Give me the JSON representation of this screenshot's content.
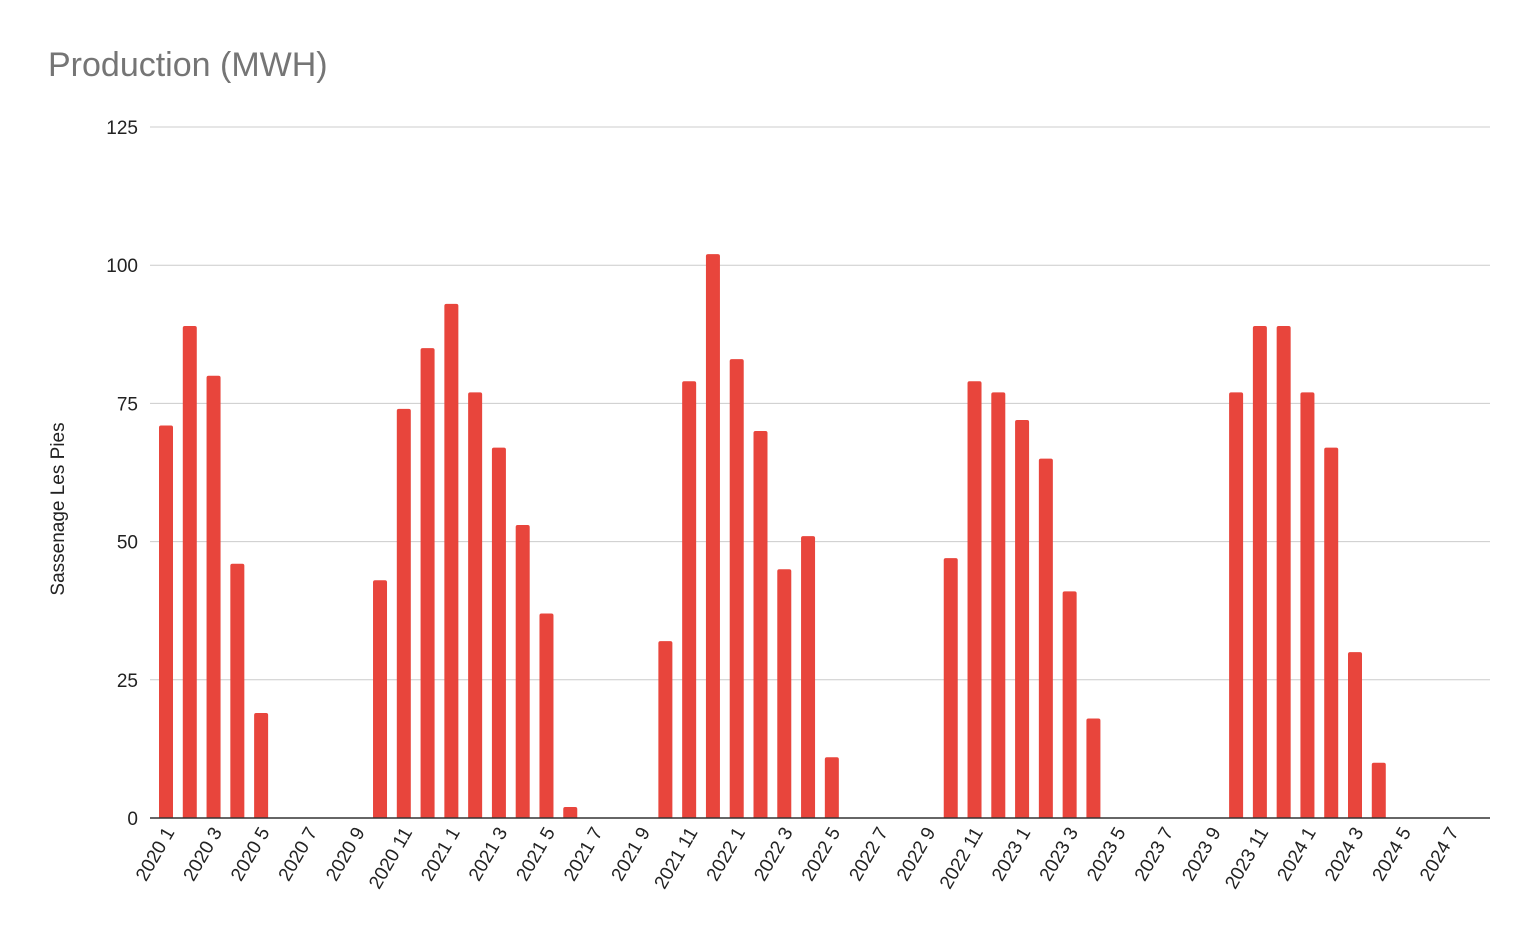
{
  "chart_data": {
    "type": "bar",
    "title": "Production (MWH)",
    "ylabel": "Sassenage Les Pies",
    "xlabel": "",
    "ylim": [
      0,
      125
    ],
    "yticks": [
      0,
      25,
      50,
      75,
      100,
      125
    ],
    "grid": true,
    "color": "#e8453c",
    "categories": [
      "2020 1",
      "2020 2",
      "2020 3",
      "2020 4",
      "2020 5",
      "2020 6",
      "2020 7",
      "2020 8",
      "2020 9",
      "2020 10",
      "2020 11",
      "2020 12",
      "2021 1",
      "2021 2",
      "2021 3",
      "2021 4",
      "2021 5",
      "2021 6",
      "2021 7",
      "2021 8",
      "2021 9",
      "2021 10",
      "2021 11",
      "2021 12",
      "2022 1",
      "2022 2",
      "2022 3",
      "2022 4",
      "2022 5",
      "2022 6",
      "2022 7",
      "2022 8",
      "2022 9",
      "2022 10",
      "2022 11",
      "2022 12",
      "2023 1",
      "2023 2",
      "2023 3",
      "2023 4",
      "2023 5",
      "2023 6",
      "2023 7",
      "2023 8",
      "2023 9",
      "2023 10",
      "2023 11",
      "2023 12",
      "2024 1",
      "2024 2",
      "2024 3",
      "2024 4",
      "2024 5",
      "2024 6",
      "2024 7",
      "2024 8"
    ],
    "values": [
      71,
      89,
      80,
      46,
      19,
      0,
      0,
      0,
      0,
      43,
      74,
      85,
      93,
      77,
      67,
      53,
      37,
      2,
      0,
      0,
      0,
      32,
      79,
      102,
      83,
      70,
      45,
      51,
      11,
      0,
      0,
      0,
      0,
      47,
      79,
      77,
      72,
      65,
      41,
      18,
      0,
      0,
      0,
      0,
      0,
      77,
      89,
      89,
      77,
      67,
      30,
      10,
      0,
      0,
      0,
      0
    ],
    "xtick_labels": [
      "2020 1",
      "2020 3",
      "2020 5",
      "2020 7",
      "2020 9",
      "2020 11",
      "2021 1",
      "2021 3",
      "2021 5",
      "2021 7",
      "2021 9",
      "2021 11",
      "2022 1",
      "2022 3",
      "2022 5",
      "2022 7",
      "2022 9",
      "2022 11",
      "2023 1",
      "2023 3",
      "2023 5",
      "2023 7",
      "2023 9",
      "2023 11",
      "2024 1",
      "2024 3",
      "2024 5",
      "2024 7"
    ]
  }
}
